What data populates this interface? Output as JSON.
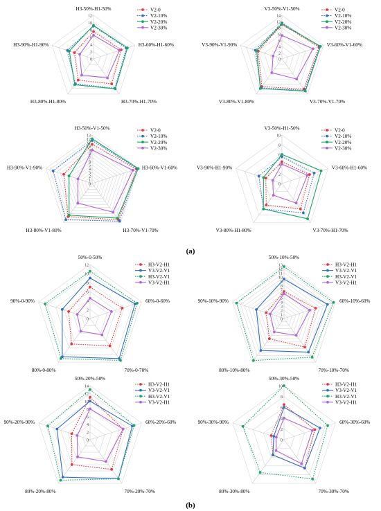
{
  "figure": {
    "panel_labels": [
      "(a)",
      "(b)"
    ]
  },
  "chart_data": [
    {
      "type": "radar",
      "panel": "a",
      "axes": [
        "H3-50%-H1-50%",
        "H3-60%-H1-60%",
        "H3-70%-H1-70%",
        "H3-80%-H1-80%",
        "H3-90%-H1-90%"
      ],
      "ticks": [
        "0",
        "2",
        "4",
        "6",
        "8",
        "10",
        "12"
      ],
      "rmax": 12,
      "series": [
        {
          "name": "V2-0",
          "values": [
            7.5,
            8.0,
            8.5,
            7.2,
            5.5
          ],
          "color": "#e8383d",
          "dash": "dotted"
        },
        {
          "name": "V2-10%",
          "values": [
            9.0,
            9.5,
            10.0,
            8.5,
            7.5
          ],
          "color": "#2f6fc7",
          "dash": "dotted"
        },
        {
          "name": "V2-20%",
          "values": [
            9.2,
            9.8,
            10.2,
            8.8,
            7.0
          ],
          "color": "#1aa663",
          "dash": "solid"
        },
        {
          "name": "V2-30%",
          "values": [
            6.5,
            7.5,
            6.5,
            5.5,
            4.0
          ],
          "color": "#b265d6",
          "dash": "solid"
        }
      ]
    },
    {
      "type": "radar",
      "panel": "a",
      "axes": [
        "V3-50%-V1-50%",
        "V3-60%-V1-60%",
        "V3-70%-V1-70%",
        "V3-80%-V1-80%",
        "V3-90%-V1-90%"
      ],
      "ticks": [
        "0",
        "2",
        "4",
        "6",
        "8",
        "10",
        "12",
        "14"
      ],
      "rmax": 14,
      "series": [
        {
          "name": "V2-0",
          "values": [
            11.0,
            12.5,
            12.0,
            11.0,
            8.0
          ],
          "color": "#e8383d",
          "dash": "dotted"
        },
        {
          "name": "V2-10%",
          "values": [
            11.5,
            12.8,
            12.5,
            11.5,
            9.0
          ],
          "color": "#2f6fc7",
          "dash": "dotted"
        },
        {
          "name": "V2-20%",
          "values": [
            11.2,
            13.0,
            12.8,
            11.8,
            8.5
          ],
          "color": "#1aa663",
          "dash": "solid"
        },
        {
          "name": "V2-30%",
          "values": [
            7.5,
            10.5,
            8.0,
            5.5,
            3.0
          ],
          "color": "#b265d6",
          "dash": "solid"
        }
      ]
    },
    {
      "type": "radar",
      "panel": "a",
      "axes": [
        "H3-50%-V1-50%",
        "H3-60%-V1-60%",
        "H3-70%-V1-70%",
        "H3-80%-V1-80%",
        "H3-90%-V1-90%"
      ],
      "ticks": [
        "0",
        "1",
        "2",
        "3",
        "4",
        "5",
        "6",
        "7",
        "8",
        "9",
        "10",
        "11",
        "12",
        "13"
      ],
      "rmax": 13,
      "series": [
        {
          "name": "V2-0",
          "values": [
            10.5,
            12.5,
            12.0,
            11.0,
            8.0
          ],
          "color": "#e8383d",
          "dash": "dotted"
        },
        {
          "name": "V2-10%",
          "values": [
            11.5,
            12.8,
            12.5,
            12.0,
            11.0
          ],
          "color": "#2f6fc7",
          "dash": "dotted"
        },
        {
          "name": "V2-20%",
          "values": [
            12.0,
            13.0,
            11.5,
            10.5,
            6.5
          ],
          "color": "#1aa663",
          "dash": "solid"
        },
        {
          "name": "V2-30%",
          "values": [
            9.0,
            11.5,
            9.5,
            6.5,
            4.0
          ],
          "color": "#b265d6",
          "dash": "solid"
        }
      ]
    },
    {
      "type": "radar",
      "panel": "a",
      "axes": [
        "V3-50%-H1-50%",
        "V3-60%-H1-60%",
        "V3-70%-H1-70%",
        "V3-80%-H1-80%",
        "V3-90%-H1-90%"
      ],
      "ticks": [
        "0",
        "2",
        "4",
        "6",
        "8",
        "10"
      ],
      "rmax": 10,
      "series": [
        {
          "name": "V2-0",
          "values": [
            4.5,
            6.0,
            6.5,
            5.5,
            3.5
          ],
          "color": "#e8383d",
          "dash": "dotted"
        },
        {
          "name": "V2-10%",
          "values": [
            5.5,
            7.0,
            7.5,
            6.5,
            5.0
          ],
          "color": "#2f6fc7",
          "dash": "dotted"
        },
        {
          "name": "V2-20%",
          "values": [
            6.0,
            8.5,
            9.0,
            6.5,
            4.0
          ],
          "color": "#1aa663",
          "dash": "solid"
        },
        {
          "name": "V2-30%",
          "values": [
            4.0,
            5.5,
            5.0,
            3.0,
            2.0
          ],
          "color": "#b265d6",
          "dash": "solid"
        }
      ]
    },
    {
      "type": "radar",
      "panel": "b",
      "axes": [
        "50%-0-50%",
        "60%-0-60%",
        "70%-0-70%",
        "80%-0-80%",
        "90%-0-90%"
      ],
      "ticks": [
        "0",
        "2",
        "4",
        "6",
        "8",
        "10",
        "12"
      ],
      "rmax": 12,
      "series": [
        {
          "name": "H3-V2-H1",
          "values": [
            7.0,
            7.5,
            7.5,
            7.0,
            5.0
          ],
          "color": "#e8383d",
          "dash": "dotted"
        },
        {
          "name": "V3-V2-V1",
          "values": [
            9.0,
            10.5,
            11.0,
            10.5,
            6.5
          ],
          "color": "#2f6fc7",
          "dash": "solid"
        },
        {
          "name": "H3-V2-V1",
          "values": [
            10.5,
            11.0,
            11.5,
            11.0,
            10.5
          ],
          "color": "#1aa663",
          "dash": "dotted"
        },
        {
          "name": "V3-V2-H1",
          "values": [
            4.5,
            5.0,
            4.5,
            3.5,
            3.0
          ],
          "color": "#b265d6",
          "dash": "solid"
        }
      ]
    },
    {
      "type": "radar",
      "panel": "b",
      "axes": [
        "50%-10%-50%",
        "60%-10%-60%",
        "70%-10%-70%",
        "80%-10%-80%",
        "90%-10%-90%"
      ],
      "ticks": [
        "0",
        "1",
        "2",
        "3",
        "4",
        "5",
        "6",
        "7",
        "8",
        "9",
        "10",
        "11",
        "12",
        "13"
      ],
      "rmax": 13,
      "series": [
        {
          "name": "H3-V2-H1",
          "values": [
            6.5,
            8.0,
            8.5,
            6.0,
            4.5
          ],
          "color": "#e8383d",
          "dash": "dotted"
        },
        {
          "name": "V3-V2-V1",
          "values": [
            9.5,
            11.0,
            10.0,
            9.5,
            7.0
          ],
          "color": "#2f6fc7",
          "dash": "solid"
        },
        {
          "name": "H3-V2-V1",
          "values": [
            12.5,
            12.5,
            11.5,
            12.5,
            12.0
          ],
          "color": "#1aa663",
          "dash": "dotted"
        },
        {
          "name": "V3-V2-H1",
          "values": [
            6.0,
            6.5,
            5.0,
            4.0,
            3.5
          ],
          "color": "#b265d6",
          "dash": "solid"
        }
      ]
    },
    {
      "type": "radar",
      "panel": "b",
      "axes": [
        "50%-20%-50%",
        "60%-20%-60%",
        "70%-20%-70%",
        "80%-20%-80%",
        "90%-20%-90%"
      ],
      "ticks": [
        "0",
        "2",
        "4",
        "6",
        "8",
        "10",
        "12",
        "14"
      ],
      "rmax": 14,
      "series": [
        {
          "name": "H3-V2-H1",
          "values": [
            11.0,
            9.0,
            9.5,
            8.0,
            5.0
          ],
          "color": "#e8383d",
          "dash": "dotted"
        },
        {
          "name": "V3-V2-V1",
          "values": [
            10.0,
            11.5,
            12.5,
            12.0,
            9.0
          ],
          "color": "#2f6fc7",
          "dash": "solid"
        },
        {
          "name": "H3-V2-V1",
          "values": [
            13.0,
            12.0,
            12.5,
            13.0,
            11.5
          ],
          "color": "#1aa663",
          "dash": "dotted"
        },
        {
          "name": "V3-V2-H1",
          "values": [
            8.0,
            9.0,
            7.0,
            5.5,
            3.5
          ],
          "color": "#b265d6",
          "dash": "solid"
        }
      ]
    },
    {
      "type": "radar",
      "panel": "b",
      "axes": [
        "50%-30%-50%",
        "60%-30%-60%",
        "70%-30%-70%",
        "80%-30%-80%",
        "90%-30%-90%"
      ],
      "ticks": [
        "0",
        "2",
        "4",
        "6",
        "8",
        "10"
      ],
      "rmax": 10,
      "series": [
        {
          "name": "H3-V2-H1",
          "values": [
            6.5,
            6.0,
            6.5,
            3.5,
            2.5
          ],
          "color": "#e8383d",
          "dash": "dotted"
        },
        {
          "name": "V3-V2-V1",
          "values": [
            6.0,
            7.0,
            6.5,
            3.5,
            2.0
          ],
          "color": "#2f6fc7",
          "dash": "solid"
        },
        {
          "name": "H3-V2-V1",
          "values": [
            10.0,
            8.5,
            9.0,
            7.5,
            8.0
          ],
          "color": "#1aa663",
          "dash": "dotted"
        },
        {
          "name": "V3-V2-H1",
          "values": [
            4.0,
            5.5,
            5.5,
            2.5,
            1.5
          ],
          "color": "#b265d6",
          "dash": "solid"
        }
      ]
    }
  ]
}
